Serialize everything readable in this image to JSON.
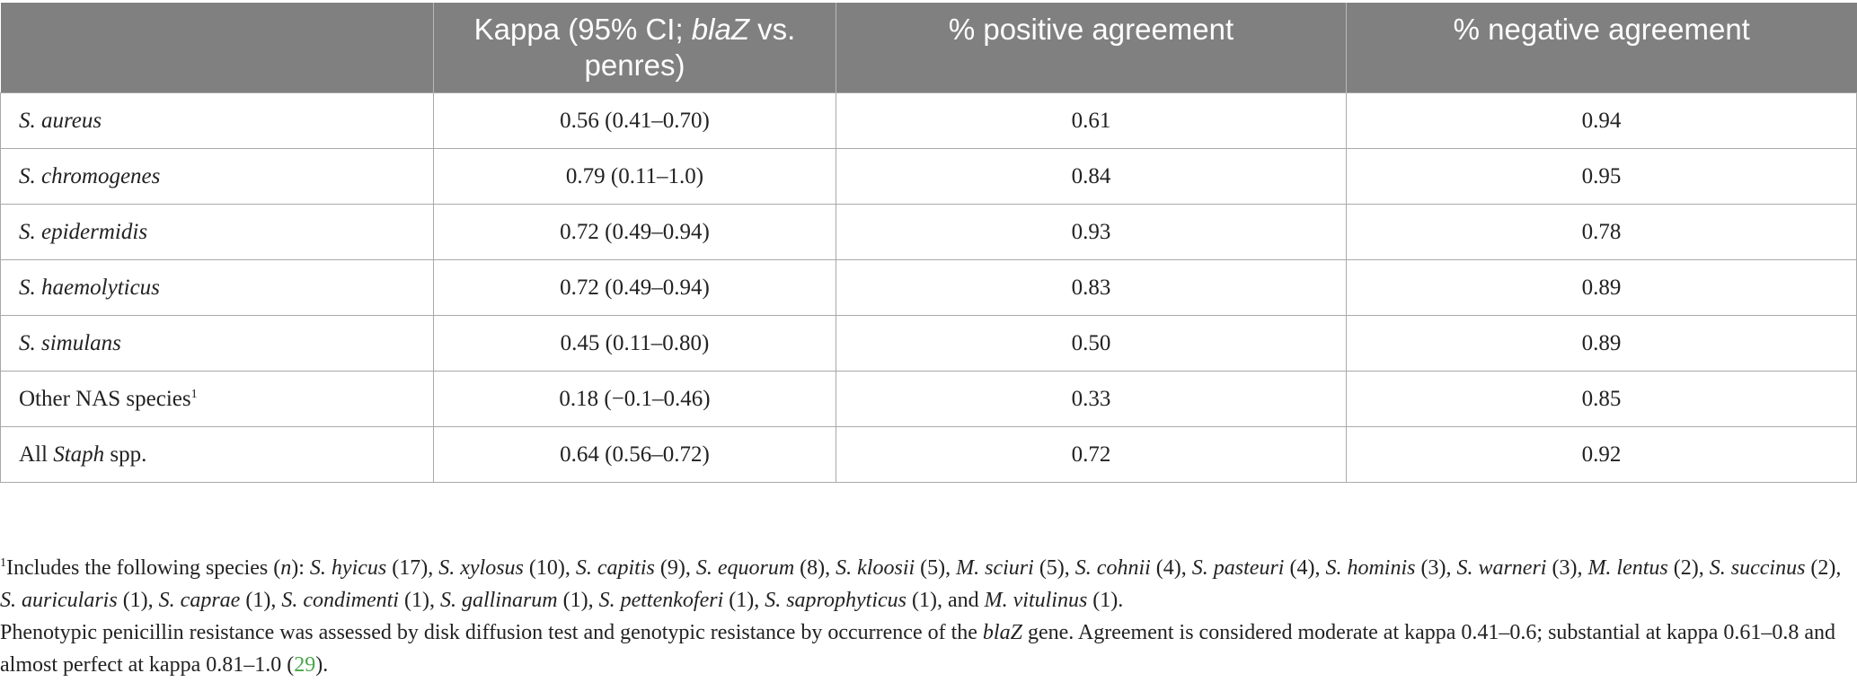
{
  "header": {
    "col1": "",
    "col2_pre": "Kappa (95% CI; ",
    "col2_italic": "blaZ",
    "col2_post": " vs. penres)",
    "col3": "% positive agreement",
    "col4": "% negative agreement"
  },
  "rows": [
    {
      "name_italic": "S. aureus",
      "kappa": "0.56 (0.41–0.70)",
      "pos": "0.61",
      "neg": "0.94"
    },
    {
      "name_italic": "S. chromogenes",
      "kappa": "0.79 (0.11–1.0)",
      "pos": "0.84",
      "neg": "0.95"
    },
    {
      "name_italic": "S. epidermidis",
      "kappa": "0.72 (0.49–0.94)",
      "pos": "0.93",
      "neg": "0.78"
    },
    {
      "name_italic": "S. haemolyticus",
      "kappa": "0.72 (0.49–0.94)",
      "pos": "0.83",
      "neg": "0.89"
    },
    {
      "name_italic": "S. simulans",
      "kappa": "0.45 (0.11–0.80)",
      "pos": "0.50",
      "neg": "0.89"
    },
    {
      "name_plain": "Other NAS species",
      "sup": "1",
      "kappa": "0.18 (−0.1–0.46)",
      "pos": "0.33",
      "neg": "0.85"
    },
    {
      "name_pre": "All ",
      "name_italic": "Staph",
      "name_post": " spp.",
      "kappa": "0.64 (0.56–0.72)",
      "pos": "0.72",
      "neg": "0.92"
    }
  ],
  "footnote1": {
    "sup": "1",
    "p1": "Includes the following species (",
    "n": "n",
    "p2": "): ",
    "species": [
      {
        "name": "S. hyicus",
        "count": " (17), "
      },
      {
        "name": "S. xylosus",
        "count": " (10), "
      },
      {
        "name": "S. capitis",
        "count": " (9), "
      },
      {
        "name": "S. equorum",
        "count": " (8), "
      },
      {
        "name": "S. kloosii",
        "count": " (5), "
      },
      {
        "name": "M. sciuri",
        "count": " (5), "
      },
      {
        "name": "S. cohnii",
        "count": " (4), "
      },
      {
        "name": "S. pasteuri",
        "count": " (4), "
      },
      {
        "name": "S. hominis",
        "count": " (3), "
      },
      {
        "name": "S. warneri",
        "count": " (3), "
      },
      {
        "name": "M. lentus",
        "count": " (2), "
      },
      {
        "name": "S. succinus",
        "count": " (2), "
      },
      {
        "name": "S. auricularis",
        "count": " (1), "
      },
      {
        "name": "S. caprae",
        "count": " (1), "
      },
      {
        "name": "S. condimenti",
        "count": " (1), "
      },
      {
        "name": "S. gallinarum",
        "count": " (1), "
      },
      {
        "name": "S. pettenkoferi",
        "count": " (1), "
      },
      {
        "name": "S. saprophyticus",
        "count": " (1), and "
      },
      {
        "name": "M. vitulinus",
        "count": " (1)."
      }
    ]
  },
  "footnote2": {
    "p1": "Phenotypic penicillin resistance was assessed by disk diffusion test and genotypic resistance by occurrence of the ",
    "gene": "blaZ",
    "p2": " gene. Agreement is considered moderate at kappa 0.41–0.6; substantial at kappa 0.61–0.8 and almost perfect at kappa 0.81–1.0 (",
    "ref": "29",
    "p3": ")."
  },
  "colors": {
    "header_bg": "#808080",
    "border": "#a9a9a9",
    "ref_link": "#4aa64a"
  }
}
